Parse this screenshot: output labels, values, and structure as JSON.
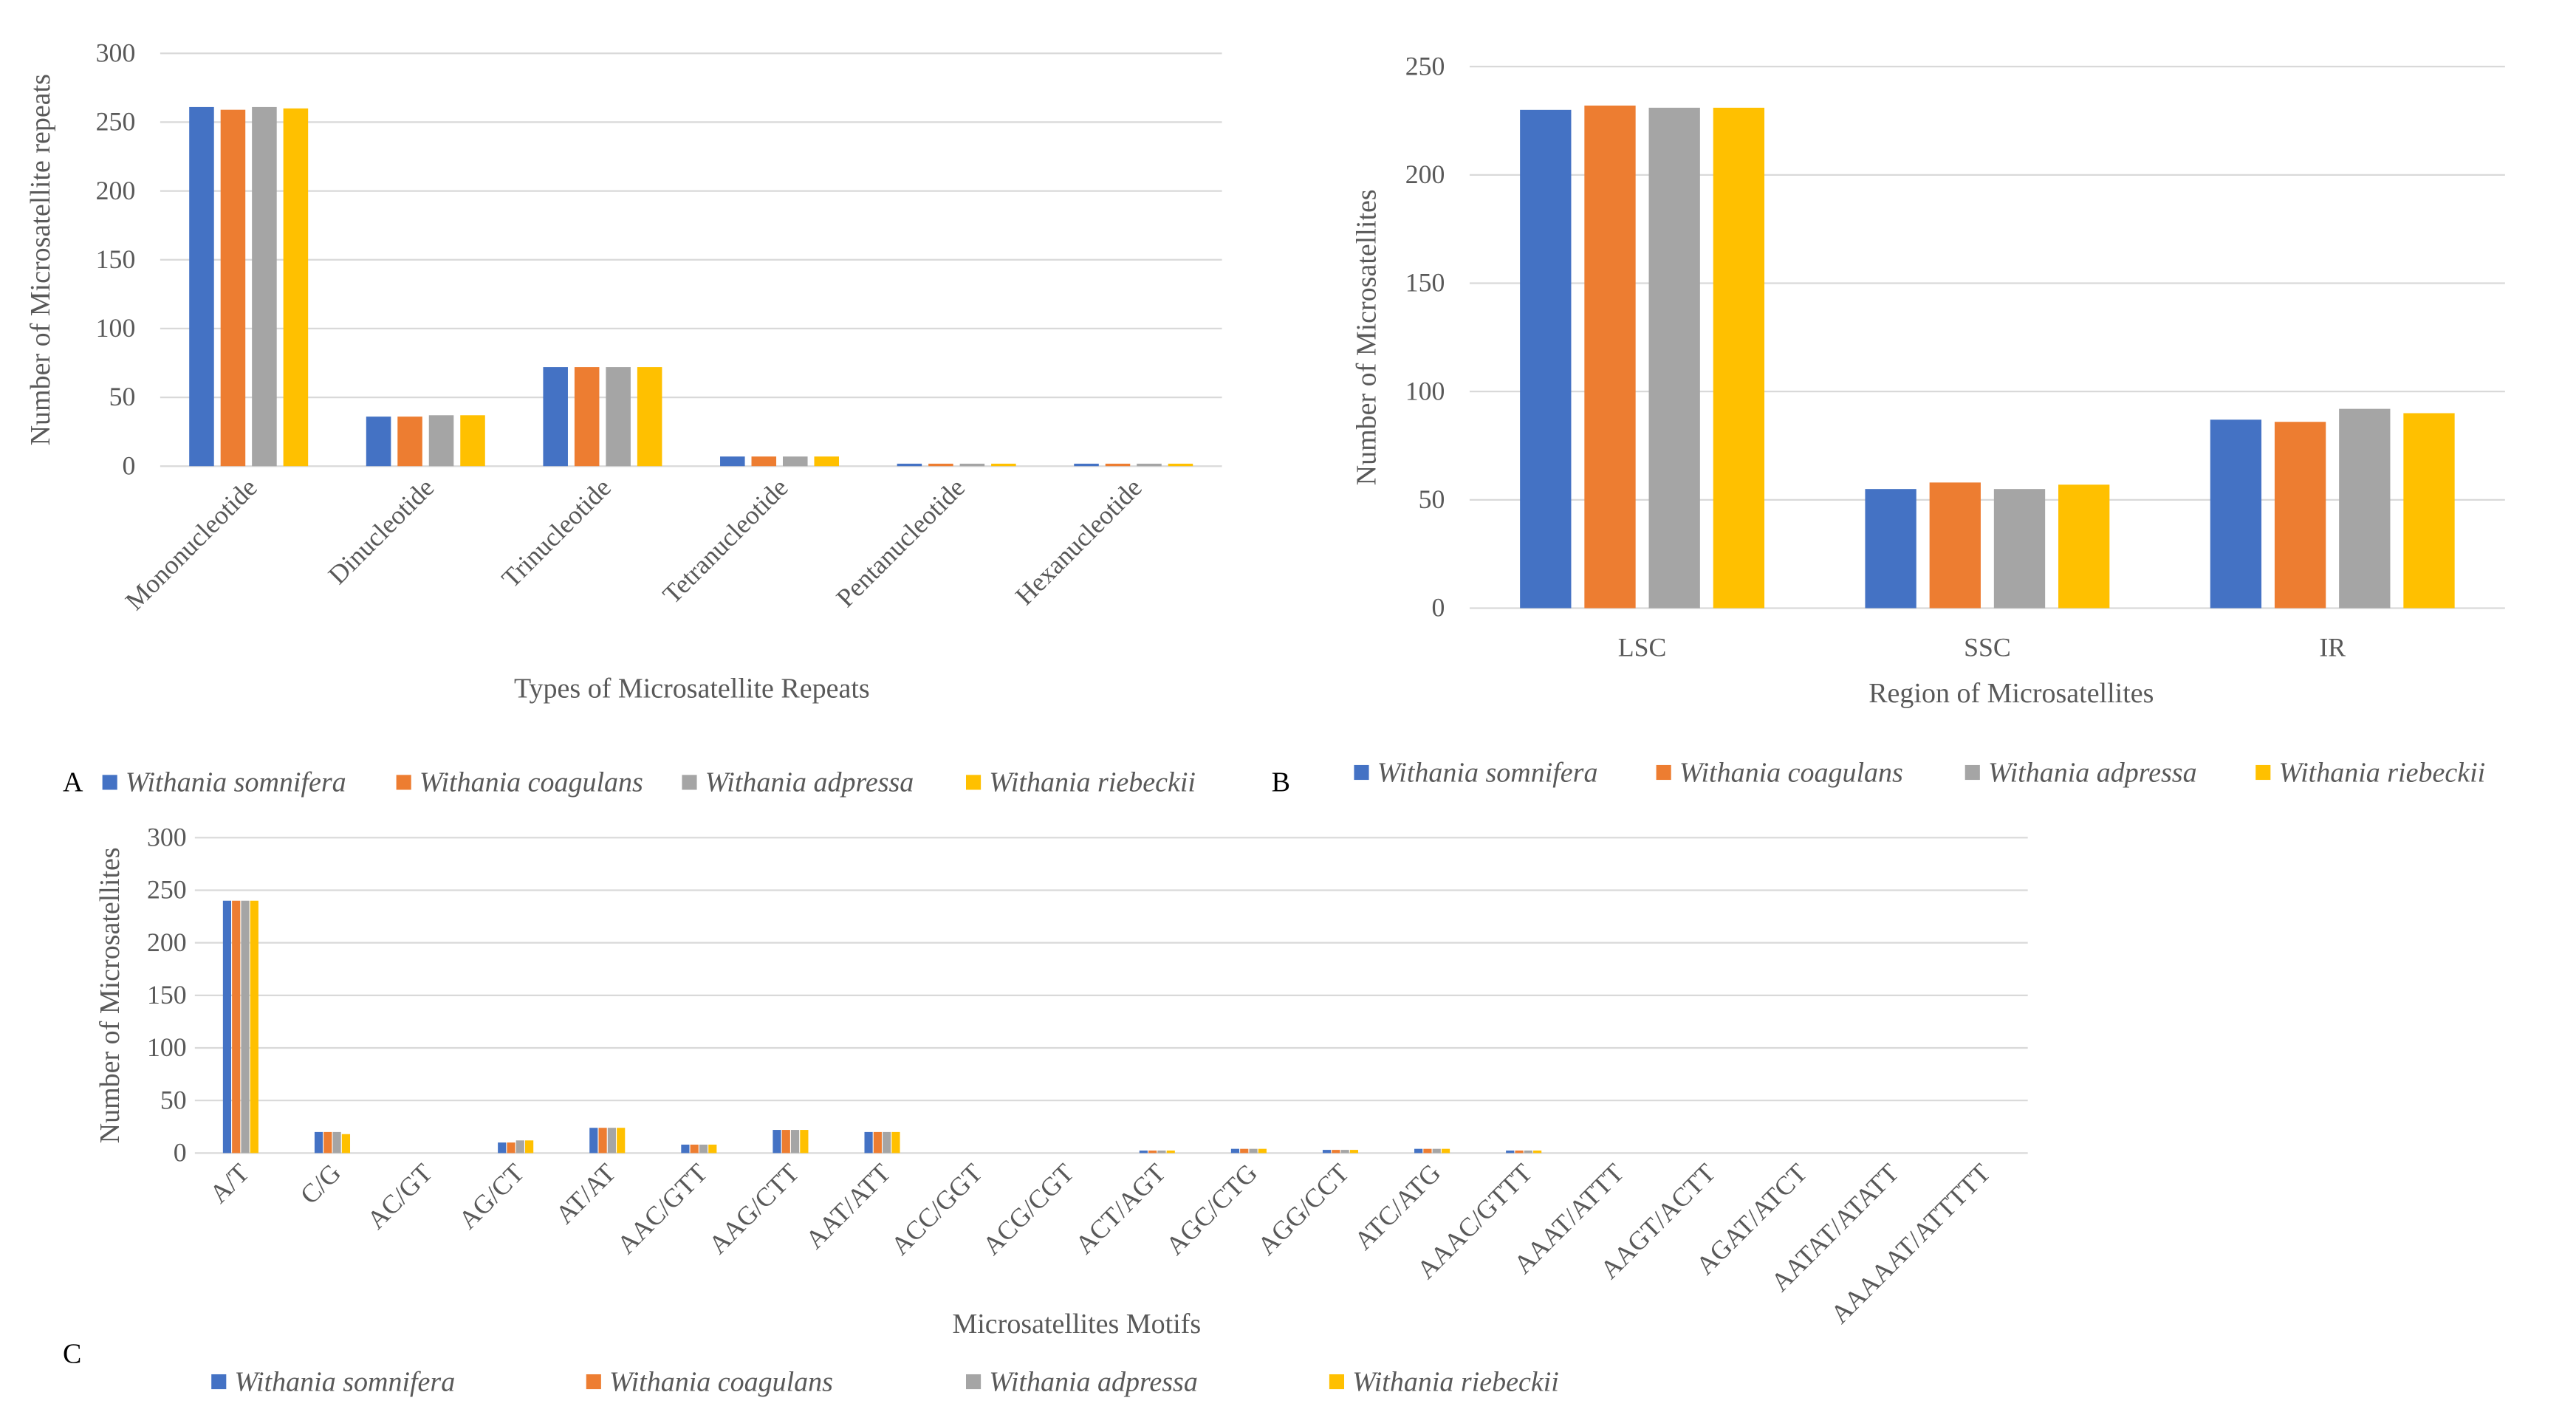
{
  "colors": {
    "Withania somnifera": "#4472c4",
    "Withania coagulans": "#ed7d31",
    "Withania adpressa": "#a5a5a5",
    "Withania riebeckii": "#ffc000"
  },
  "series_names": [
    "Withania somnifera",
    "Withania coagulans",
    "Withania adpressa",
    "Withania  riebeckii"
  ],
  "chart_data": [
    {
      "panel": "A",
      "type": "bar",
      "categories": [
        "Mononucleotide",
        "Dinucleotide",
        "Trinucleotide",
        "Tetranucleotide",
        "Pentanucleotide",
        "Hexanucleotide"
      ],
      "series": [
        {
          "name": "Withania somnifera",
          "values": [
            261,
            36,
            72,
            7,
            1,
            1
          ]
        },
        {
          "name": "Withania coagulans",
          "values": [
            259,
            36,
            72,
            7,
            1,
            1
          ]
        },
        {
          "name": "Withania adpressa",
          "values": [
            261,
            37,
            72,
            7,
            1,
            1
          ]
        },
        {
          "name": "Withania riebeckii",
          "values": [
            260,
            37,
            72,
            7,
            1,
            1
          ]
        }
      ],
      "xlabel": "Types of Microsatellite Repeats",
      "ylabel": "Number of Microsatellite repeats",
      "ylim": [
        0,
        300
      ],
      "yticks": [
        0,
        50,
        100,
        150,
        200,
        250,
        300
      ],
      "grid": true,
      "legend": "bottom"
    },
    {
      "panel": "B",
      "type": "bar",
      "categories": [
        "LSC",
        "SSC",
        "IR"
      ],
      "series": [
        {
          "name": "Withania somnifera",
          "values": [
            230,
            55,
            87
          ]
        },
        {
          "name": "Withania coagulans",
          "values": [
            232,
            58,
            86
          ]
        },
        {
          "name": "Withania adpressa",
          "values": [
            231,
            55,
            92
          ]
        },
        {
          "name": "Withania riebeckii",
          "values": [
            231,
            57,
            90
          ]
        }
      ],
      "xlabel": "Region of Microsatellites",
      "ylabel": "Number of Microsatellites",
      "ylim": [
        0,
        250
      ],
      "yticks": [
        0,
        50,
        100,
        150,
        200,
        250
      ],
      "grid": true,
      "legend": "bottom"
    },
    {
      "panel": "C",
      "type": "bar",
      "categories": [
        "A/T",
        "C/G",
        "AC/GT",
        "AG/CT",
        "AT/AT",
        "AAC/GTT",
        "AAG/CTT",
        "AAT/ATT",
        "ACC/GGT",
        "ACG/CGT",
        "ACT/AGT",
        "AGC/CTG",
        "AGG/CCT",
        "ATC/ATG",
        "AAAC/GTTT",
        "AAAT/ATTT",
        "AAGT/ACTT",
        "AGAT/ATCT",
        "AATAT/ATATT",
        "AAAAAT/ATTTTT"
      ],
      "series": [
        {
          "name": "Withania somnifera",
          "values": [
            240,
            20,
            0,
            10,
            24,
            8,
            22,
            20,
            0,
            0,
            2,
            4,
            3,
            4,
            2,
            0,
            0,
            0,
            0,
            0
          ]
        },
        {
          "name": "Withania coagulans",
          "values": [
            240,
            20,
            0,
            10,
            24,
            8,
            22,
            20,
            0,
            0,
            2,
            4,
            3,
            4,
            2,
            0,
            0,
            0,
            0,
            0
          ]
        },
        {
          "name": "Withania adpressa",
          "values": [
            240,
            20,
            0,
            12,
            24,
            8,
            22,
            20,
            0,
            0,
            2,
            4,
            3,
            4,
            2,
            0,
            0,
            0,
            0,
            0
          ]
        },
        {
          "name": "Withania riebeckii",
          "values": [
            240,
            18,
            0,
            12,
            24,
            8,
            22,
            20,
            0,
            0,
            2,
            4,
            3,
            4,
            2,
            0,
            0,
            0,
            0,
            0
          ]
        }
      ],
      "xlabel": "Microsatellites Motifs",
      "ylabel": "Number of Microsatellites",
      "ylim": [
        0,
        300
      ],
      "yticks": [
        0,
        50,
        100,
        150,
        200,
        250,
        300
      ],
      "grid": true,
      "legend": "bottom"
    }
  ]
}
